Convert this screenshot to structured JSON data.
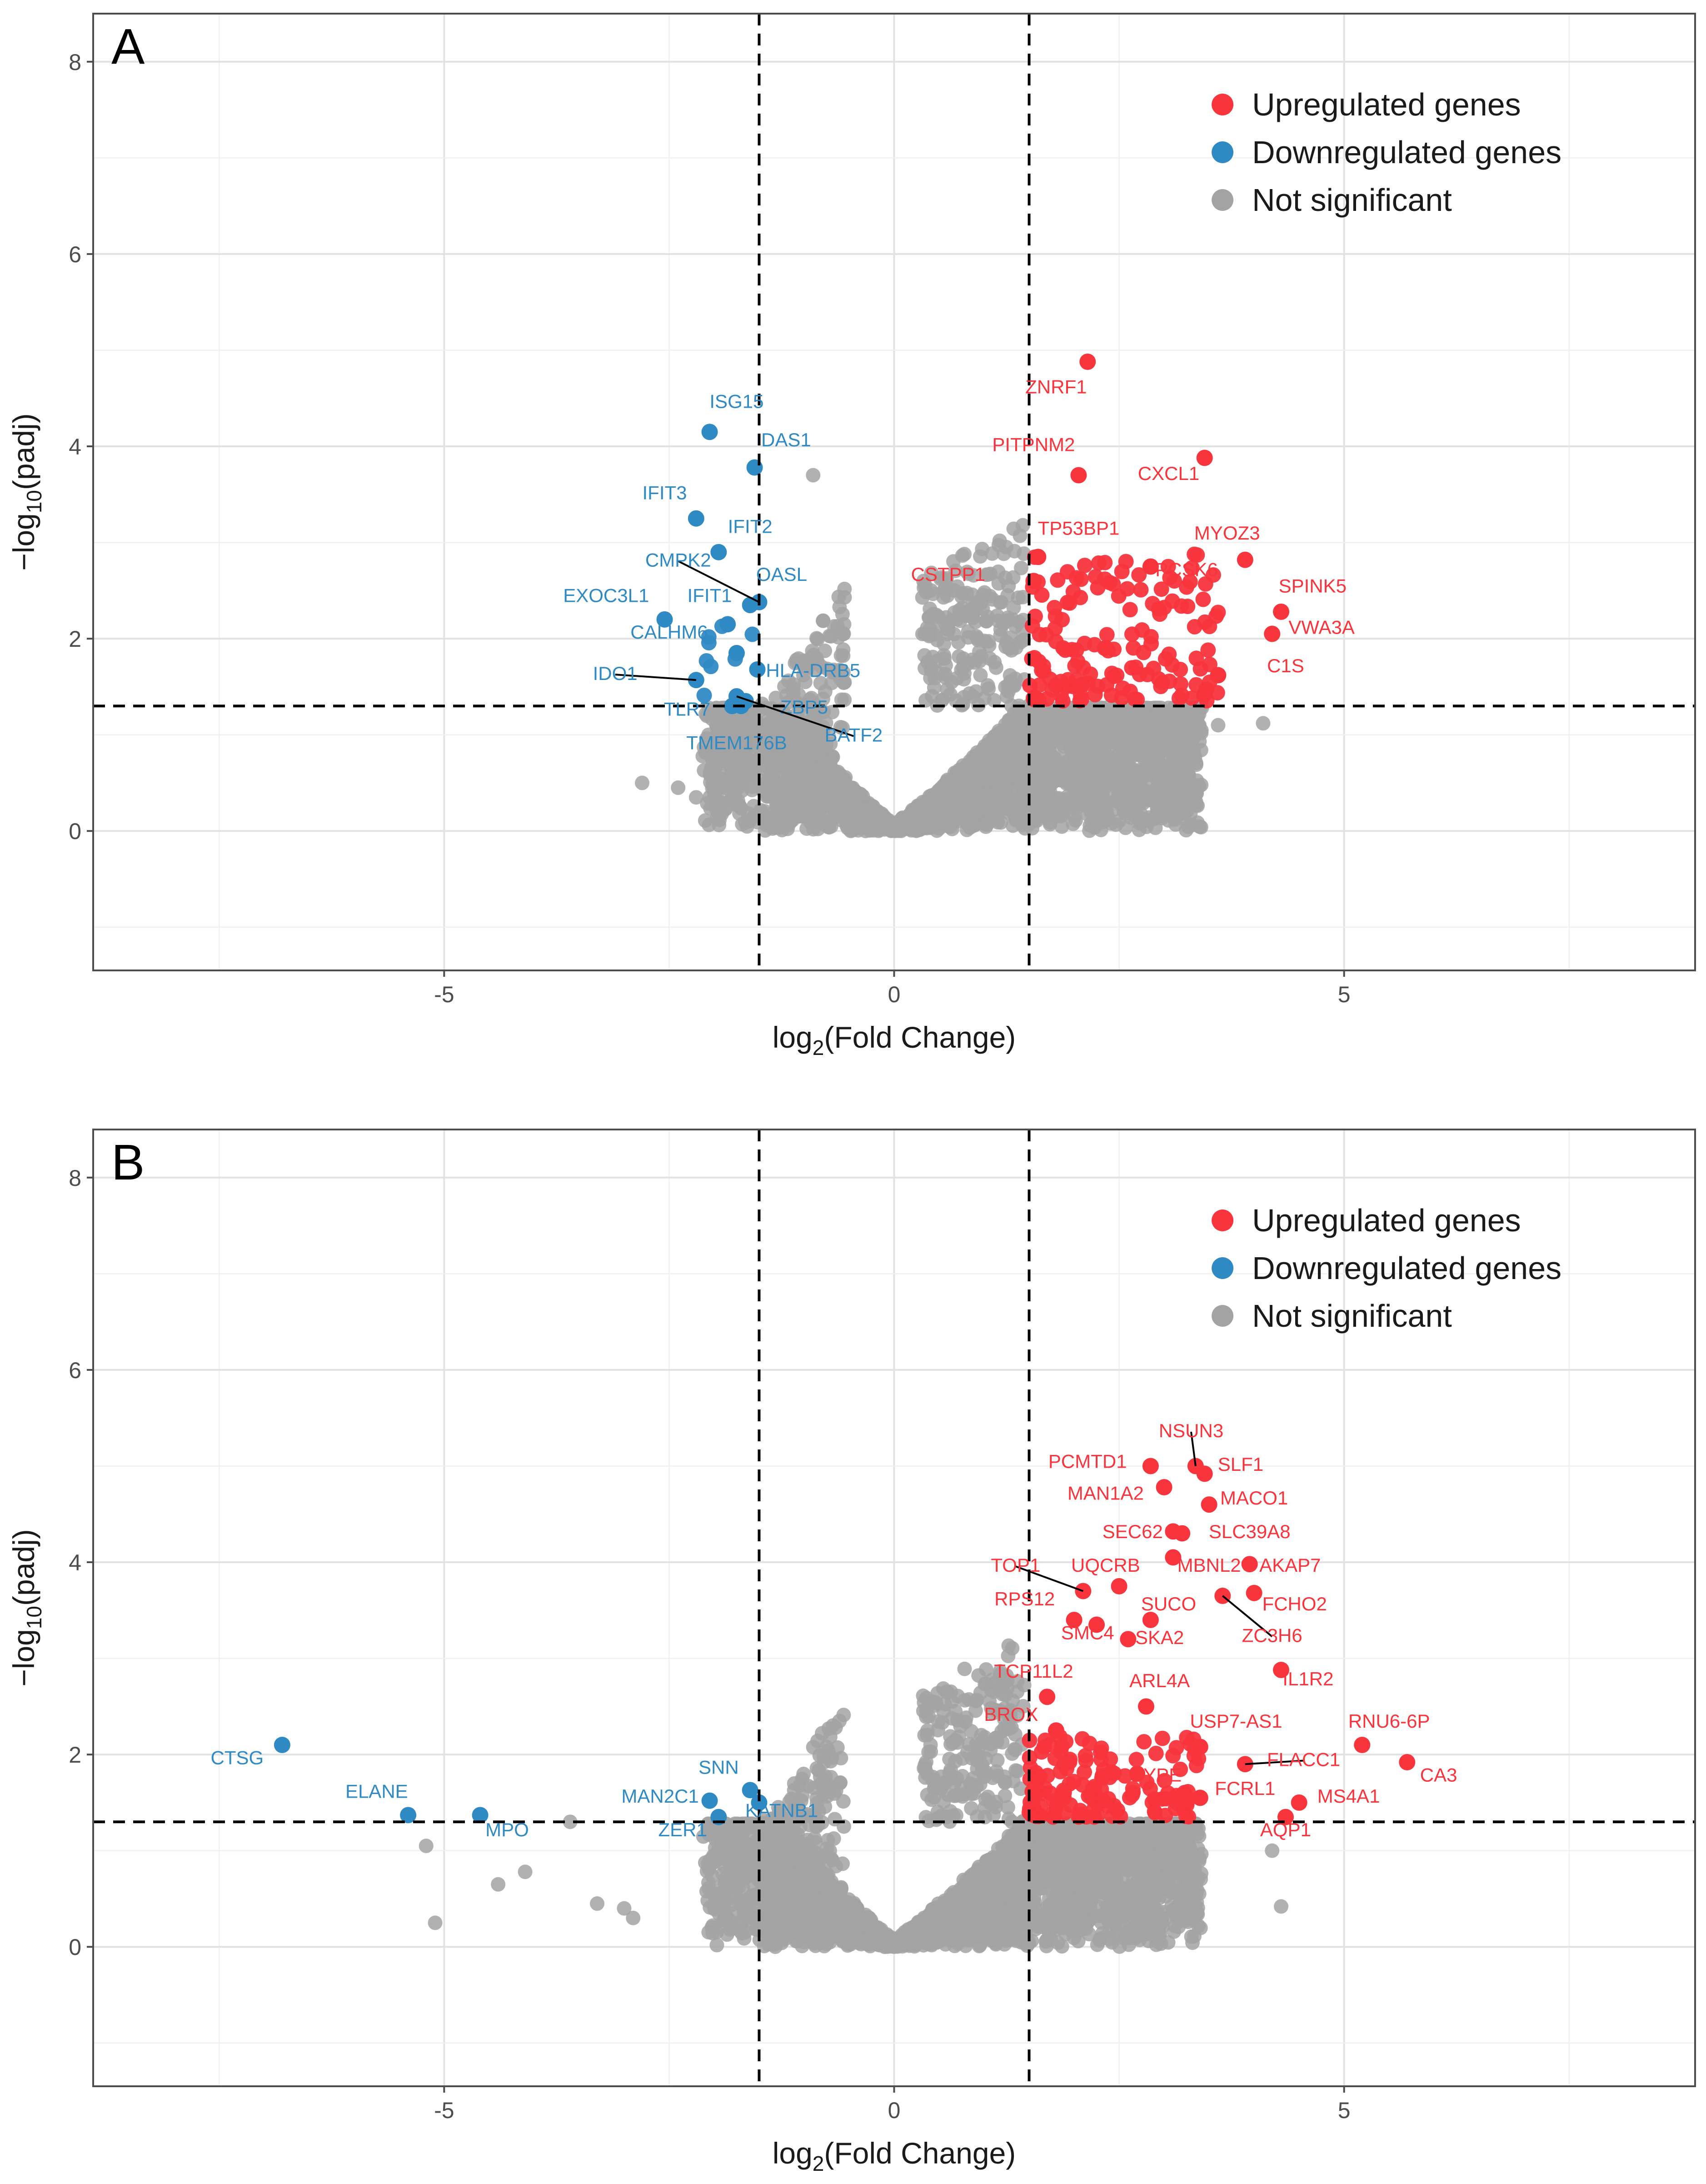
{
  "figure": {
    "colors": {
      "upregulated": "#f8343c",
      "downregulated": "#2f8ac4",
      "not_significant": "#a3a3a3",
      "grid_major": "#e2e2e2",
      "grid_minor": "#f0f0f0",
      "frame": "#4d4d4d"
    },
    "legend": {
      "up": "Upregulated genes",
      "down": "Downregulated genes",
      "ns": "Not significant"
    }
  },
  "chart_data": [
    {
      "type": "scatter",
      "panel_label": "A",
      "title": "",
      "xlabel_main": "log",
      "xlabel_sub": "2",
      "xlabel_rest": "(Fold Change)",
      "ylabel_main": "−log",
      "ylabel_sub": "10",
      "ylabel_rest": "(padj)",
      "xlim": [
        -8.9,
        8.9
      ],
      "ylim": [
        -1.45,
        8.5
      ],
      "xticks": [
        -5,
        0,
        5
      ],
      "xtick_labels": [
        "-5",
        "0",
        "5"
      ],
      "yticks": [
        0,
        2,
        4,
        6,
        8
      ],
      "ytick_labels": [
        "0",
        "2",
        "4",
        "6",
        "8"
      ],
      "thresholds": {
        "log2fc": [
          -1.5,
          1.5
        ],
        "neg_log10_padj": 1.3
      },
      "legend_position": "top-right",
      "labeled_genes": [
        {
          "gene": "ISG15",
          "x": -2.05,
          "y": 4.15,
          "label_x": -1.75,
          "label_y": 4.4,
          "group": "down"
        },
        {
          "gene": "DAS1",
          "x": -1.55,
          "y": 3.78,
          "label_x": -1.2,
          "label_y": 4.0,
          "group": "down"
        },
        {
          "gene": "IFIT3",
          "x": -2.2,
          "y": 3.25,
          "label_x": -2.55,
          "label_y": 3.45,
          "group": "down"
        },
        {
          "gene": "IFIT2",
          "x": -1.95,
          "y": 2.9,
          "label_x": -1.6,
          "label_y": 3.1,
          "group": "down"
        },
        {
          "gene": "CMPK2",
          "x": -1.5,
          "y": 2.38,
          "label_x": -2.4,
          "label_y": 2.75,
          "group": "down",
          "leader": true
        },
        {
          "gene": "OASL",
          "x": -1.6,
          "y": 2.35,
          "label_x": -1.25,
          "label_y": 2.6,
          "group": "down"
        },
        {
          "gene": "EXOC3L1",
          "x": -2.55,
          "y": 2.2,
          "label_x": -3.2,
          "label_y": 2.38,
          "group": "down"
        },
        {
          "gene": "IFIT1",
          "x": -1.85,
          "y": 2.15,
          "label_x": -2.05,
          "label_y": 2.38,
          "group": "down"
        },
        {
          "gene": "CALHM6",
          "x": -1.75,
          "y": 1.85,
          "label_x": -2.5,
          "label_y": 2.0,
          "group": "down"
        },
        {
          "gene": "HLA-DRB5",
          "x": -1.52,
          "y": 1.68,
          "label_x": -0.9,
          "label_y": 1.6,
          "group": "down"
        },
        {
          "gene": "IDO1",
          "x": -2.2,
          "y": 1.57,
          "label_x": -3.1,
          "label_y": 1.57,
          "group": "down",
          "leader": true
        },
        {
          "gene": "TLR7",
          "x": -1.7,
          "y": 1.3,
          "label_x": -2.3,
          "label_y": 1.2,
          "group": "down"
        },
        {
          "gene": "ZBP5",
          "x": -1.65,
          "y": 1.35,
          "label_x": -1.0,
          "label_y": 1.22,
          "group": "down"
        },
        {
          "gene": "BATF2",
          "x": -1.75,
          "y": 1.4,
          "label_x": -0.45,
          "label_y": 0.93,
          "group": "down",
          "leader": true
        },
        {
          "gene": "TMEM176B",
          "x": -1.8,
          "y": 1.3,
          "label_x": -1.75,
          "label_y": 0.85,
          "group": "down"
        },
        {
          "gene": "ZNRF1",
          "x": 2.15,
          "y": 4.88,
          "label_x": 1.8,
          "label_y": 4.55,
          "group": "up"
        },
        {
          "gene": "PITPNM2",
          "x": 2.05,
          "y": 3.7,
          "label_x": 1.55,
          "label_y": 3.95,
          "group": "up"
        },
        {
          "gene": "CXCL1",
          "x": 3.45,
          "y": 3.88,
          "label_x": 3.05,
          "label_y": 3.65,
          "group": "up"
        },
        {
          "gene": "TP53BP1",
          "x": 1.6,
          "y": 2.85,
          "label_x": 2.05,
          "label_y": 3.08,
          "group": "up"
        },
        {
          "gene": "MYOZ3",
          "x": 3.9,
          "y": 2.82,
          "label_x": 3.7,
          "label_y": 3.03,
          "group": "up"
        },
        {
          "gene": "PCSK6",
          "x": 2.85,
          "y": 2.75,
          "label_x": 3.25,
          "label_y": 2.65,
          "group": "up"
        },
        {
          "gene": "CSTPP1",
          "x": 1.55,
          "y": 2.6,
          "label_x": 0.6,
          "label_y": 2.6,
          "group": "up"
        },
        {
          "gene": "SPINK5",
          "x": 4.3,
          "y": 2.28,
          "label_x": 4.65,
          "label_y": 2.48,
          "group": "up"
        },
        {
          "gene": "VWA3A",
          "x": 4.2,
          "y": 2.05,
          "label_x": 4.75,
          "label_y": 2.05,
          "group": "up"
        },
        {
          "gene": "C1S",
          "x": 3.6,
          "y": 1.62,
          "label_x": 4.35,
          "label_y": 1.65,
          "group": "up"
        }
      ],
      "other_significant_points": {
        "up_count": 150,
        "down_count": 8,
        "up_range_x": [
          1.5,
          3.6
        ],
        "up_range_y": [
          1.35,
          2.9
        ]
      }
    },
    {
      "type": "scatter",
      "panel_label": "B",
      "title": "",
      "xlabel_main": "log",
      "xlabel_sub": "2",
      "xlabel_rest": "(Fold Change)",
      "ylabel_main": "−log",
      "ylabel_sub": "10",
      "ylabel_rest": "(padj)",
      "xlim": [
        -8.9,
        8.9
      ],
      "ylim": [
        -1.45,
        8.5
      ],
      "xticks": [
        -5,
        0,
        5
      ],
      "xtick_labels": [
        "-5",
        "0",
        "5"
      ],
      "yticks": [
        0,
        2,
        4,
        6,
        8
      ],
      "ytick_labels": [
        "0",
        "2",
        "4",
        "6",
        "8"
      ],
      "thresholds": {
        "log2fc": [
          -1.5,
          1.5
        ],
        "neg_log10_padj": 1.3
      },
      "legend_position": "top-right",
      "labeled_genes": [
        {
          "gene": "NSUN3",
          "x": 3.35,
          "y": 5.0,
          "label_x": 3.3,
          "label_y": 5.3,
          "group": "up",
          "leader": true
        },
        {
          "gene": "PCMTD1",
          "x": 2.85,
          "y": 5.0,
          "label_x": 2.15,
          "label_y": 4.98,
          "group": "up"
        },
        {
          "gene": "SLF1",
          "x": 3.45,
          "y": 4.92,
          "label_x": 3.85,
          "label_y": 4.95,
          "group": "up"
        },
        {
          "gene": "MAN1A2",
          "x": 3.0,
          "y": 4.78,
          "label_x": 2.35,
          "label_y": 4.65,
          "group": "up"
        },
        {
          "gene": "MACO1",
          "x": 3.5,
          "y": 4.6,
          "label_x": 4.0,
          "label_y": 4.6,
          "group": "up"
        },
        {
          "gene": "SEC62",
          "x": 3.1,
          "y": 4.32,
          "label_x": 2.65,
          "label_y": 4.25,
          "group": "up"
        },
        {
          "gene": "SLC39A8",
          "x": 3.2,
          "y": 4.3,
          "label_x": 3.95,
          "label_y": 4.25,
          "group": "up"
        },
        {
          "gene": "TOP1",
          "x": 2.1,
          "y": 3.7,
          "label_x": 1.35,
          "label_y": 3.9,
          "group": "up",
          "leader": true
        },
        {
          "gene": "UQCRB",
          "x": 2.5,
          "y": 3.75,
          "label_x": 2.35,
          "label_y": 3.9,
          "group": "up"
        },
        {
          "gene": "MBNL2",
          "x": 3.1,
          "y": 4.05,
          "label_x": 3.5,
          "label_y": 3.9,
          "group": "up"
        },
        {
          "gene": "AKAP7",
          "x": 3.95,
          "y": 3.98,
          "label_x": 4.4,
          "label_y": 3.9,
          "group": "up"
        },
        {
          "gene": "RPS12",
          "x": 2.0,
          "y": 3.4,
          "label_x": 1.45,
          "label_y": 3.55,
          "group": "up"
        },
        {
          "gene": "SUCO",
          "x": 2.85,
          "y": 3.4,
          "label_x": 3.05,
          "label_y": 3.5,
          "group": "up"
        },
        {
          "gene": "FCHO2",
          "x": 4.0,
          "y": 3.68,
          "label_x": 4.45,
          "label_y": 3.5,
          "group": "up"
        },
        {
          "gene": "ZC3H6",
          "x": 3.65,
          "y": 3.65,
          "label_x": 4.2,
          "label_y": 3.17,
          "group": "up",
          "leader": true
        },
        {
          "gene": "SMC4",
          "x": 2.25,
          "y": 3.35,
          "label_x": 2.15,
          "label_y": 3.2,
          "group": "up"
        },
        {
          "gene": "SKA2",
          "x": 2.6,
          "y": 3.2,
          "label_x": 2.95,
          "label_y": 3.15,
          "group": "up"
        },
        {
          "gene": "TCP11L2",
          "x": 1.7,
          "y": 2.6,
          "label_x": 1.55,
          "label_y": 2.8,
          "group": "up"
        },
        {
          "gene": "ARL4A",
          "x": 2.8,
          "y": 2.5,
          "label_x": 2.95,
          "label_y": 2.7,
          "group": "up"
        },
        {
          "gene": "IL1R2",
          "x": 4.3,
          "y": 2.88,
          "label_x": 4.6,
          "label_y": 2.72,
          "group": "up"
        },
        {
          "gene": "BROX",
          "x": 1.8,
          "y": 2.25,
          "label_x": 1.3,
          "label_y": 2.35,
          "group": "up"
        },
        {
          "gene": "USP7-AS1",
          "x": 3.4,
          "y": 2.08,
          "label_x": 3.8,
          "label_y": 2.28,
          "group": "up"
        },
        {
          "gene": "RNU6-6P",
          "x": 5.2,
          "y": 2.1,
          "label_x": 5.5,
          "label_y": 2.28,
          "group": "up"
        },
        {
          "gene": "FLACC1",
          "x": 3.9,
          "y": 1.9,
          "label_x": 4.55,
          "label_y": 1.88,
          "group": "up",
          "leader": true
        },
        {
          "gene": "CA3",
          "x": 5.7,
          "y": 1.92,
          "label_x": 6.05,
          "label_y": 1.72,
          "group": "up"
        },
        {
          "gene": "GYPE",
          "x": 2.7,
          "y": 1.8,
          "label_x": 2.9,
          "label_y": 1.72,
          "group": "up"
        },
        {
          "gene": "FCRL1",
          "x": 3.4,
          "y": 1.55,
          "label_x": 3.9,
          "label_y": 1.58,
          "group": "up"
        },
        {
          "gene": "MS4A1",
          "x": 4.5,
          "y": 1.5,
          "label_x": 5.05,
          "label_y": 1.5,
          "group": "up"
        },
        {
          "gene": "AQP1",
          "x": 4.35,
          "y": 1.35,
          "label_x": 4.35,
          "label_y": 1.15,
          "group": "up"
        },
        {
          "gene": "CTSG",
          "x": -6.8,
          "y": 2.1,
          "label_x": -7.3,
          "label_y": 1.9,
          "group": "down"
        },
        {
          "gene": "ELANE",
          "x": -5.4,
          "y": 1.37,
          "label_x": -5.75,
          "label_y": 1.55,
          "group": "down"
        },
        {
          "gene": "MPO",
          "x": -4.6,
          "y": 1.37,
          "label_x": -4.3,
          "label_y": 1.15,
          "group": "down"
        },
        {
          "gene": "SNN",
          "x": -1.6,
          "y": 1.63,
          "label_x": -1.95,
          "label_y": 1.8,
          "group": "down"
        },
        {
          "gene": "MAN2C1",
          "x": -2.05,
          "y": 1.52,
          "label_x": -2.6,
          "label_y": 1.5,
          "group": "down"
        },
        {
          "gene": "KATNB1",
          "x": -1.5,
          "y": 1.5,
          "label_x": -1.25,
          "label_y": 1.35,
          "group": "down"
        },
        {
          "gene": "ZER1",
          "x": -1.95,
          "y": 1.35,
          "label_x": -2.35,
          "label_y": 1.15,
          "group": "down"
        }
      ],
      "other_significant_points": {
        "up_count": 140,
        "down_count": 0,
        "up_range_x": [
          1.5,
          3.4
        ],
        "up_range_y": [
          1.35,
          2.2
        ]
      }
    }
  ]
}
